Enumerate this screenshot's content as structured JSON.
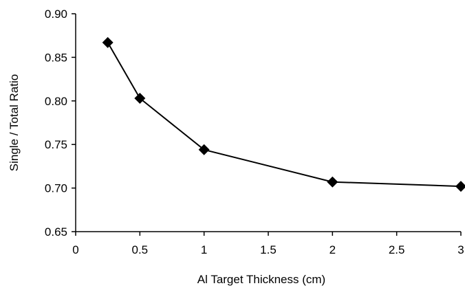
{
  "chart_data": {
    "type": "line",
    "title": "",
    "xlabel": "Al Target Thickness (cm)",
    "ylabel": "Single / Total Ratio",
    "xlim": [
      0,
      3
    ],
    "ylim": [
      0.65,
      0.9
    ],
    "x_ticks": [
      "0",
      "0.5",
      "1",
      "1.5",
      "2",
      "2.5",
      "3"
    ],
    "y_ticks": [
      "0.65",
      "0.70",
      "0.75",
      "0.80",
      "0.85",
      "0.90"
    ],
    "grid": false,
    "legend": "none",
    "marker": "diamond",
    "series": [
      {
        "x": [
          0.25,
          0.5,
          1,
          2,
          3
        ],
        "y": [
          0.867,
          0.803,
          0.744,
          0.707,
          0.702
        ]
      }
    ]
  }
}
